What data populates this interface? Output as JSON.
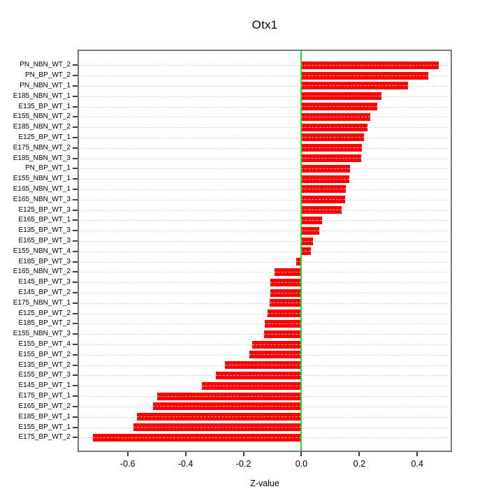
{
  "chart_data": {
    "type": "bar",
    "orientation": "horizontal",
    "title": "Otx1",
    "xlabel": "Z-value",
    "ylabel": "",
    "legend": "none",
    "grid": "horizontal-dashed-per-category",
    "xlim": [
      -0.773,
      0.52
    ],
    "bar_color": "#ff0000",
    "zero_line_color": "#21e221",
    "grid_color": "#d9d9d9",
    "x_ticks": [
      {
        "value": -0.6,
        "label": "-0.6"
      },
      {
        "value": -0.4,
        "label": "-0.4"
      },
      {
        "value": -0.2,
        "label": "-0.2"
      },
      {
        "value": 0.0,
        "label": "0.0"
      },
      {
        "value": 0.2,
        "label": "0.2"
      },
      {
        "value": 0.4,
        "label": "0.4"
      }
    ],
    "categories": [
      "PN_NBN_WT_2",
      "PN_BP_WT_2",
      "PN_NBN_WT_1",
      "E185_NBN_WT_1",
      "E135_BP_WT_1",
      "E155_NBN_WT_2",
      "E185_NBN_WT_2",
      "E125_BP_WT_1",
      "E175_NBN_WT_2",
      "E185_NBN_WT_3",
      "PN_BP_WT_1",
      "E155_NBN_WT_1",
      "E165_NBN_WT_1",
      "E165_NBN_WT_3",
      "E125_BP_WT_3",
      "E165_BP_WT_1",
      "E135_BP_WT_3",
      "E165_BP_WT_3",
      "E155_NBN_WT_4",
      "E185_BP_WT_3",
      "E165_NBN_WT_2",
      "E145_BP_WT_3",
      "E145_BP_WT_2",
      "E175_NBN_WT_1",
      "E125_BP_WT_2",
      "E185_BP_WT_2",
      "E155_NBN_WT_3",
      "E155_BP_WT_4",
      "E155_BP_WT_2",
      "E135_BP_WT_2",
      "E155_BP_WT_3",
      "E145_BP_WT_1",
      "E175_BP_WT_1",
      "E165_BP_WT_2",
      "E185_BP_WT_1",
      "E155_BP_WT_1",
      "E175_BP_WT_2"
    ],
    "values": [
      0.473,
      0.438,
      0.368,
      0.277,
      0.262,
      0.238,
      0.227,
      0.216,
      0.21,
      0.206,
      0.168,
      0.165,
      0.154,
      0.151,
      0.14,
      0.072,
      0.061,
      0.04,
      0.032,
      -0.019,
      -0.093,
      -0.106,
      -0.108,
      -0.11,
      -0.118,
      -0.127,
      -0.13,
      -0.171,
      -0.18,
      -0.263,
      -0.296,
      -0.343,
      -0.497,
      -0.513,
      -0.568,
      -0.58,
      -0.721
    ]
  }
}
